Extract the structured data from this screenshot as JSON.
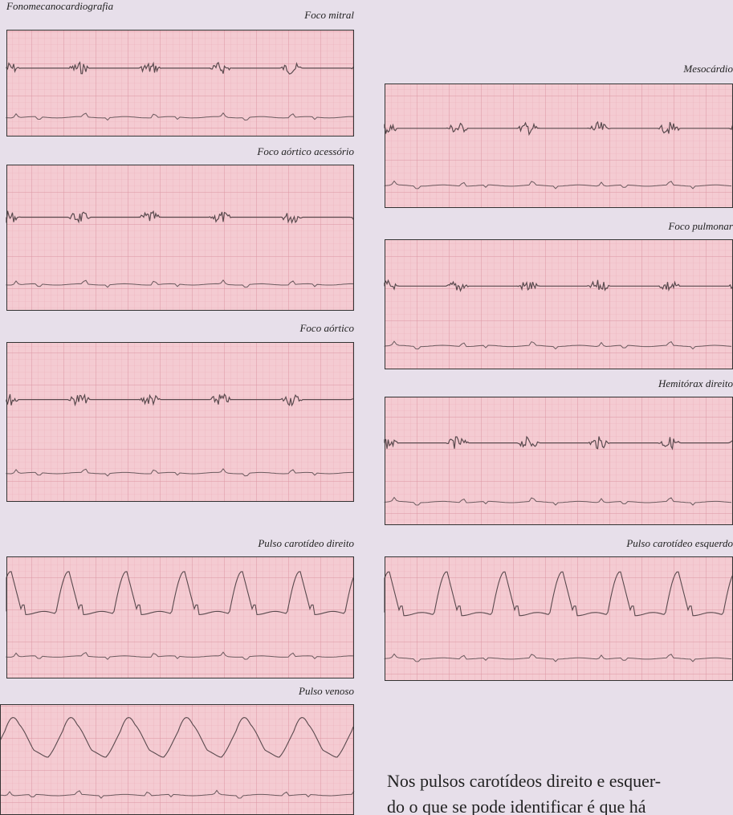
{
  "title": "Fonomecanocardiografia",
  "panels": [
    {
      "label": "Foco mitral"
    },
    {
      "label": "Foco aórtico acessório"
    },
    {
      "label": "Foco aórtico"
    },
    {
      "label": "Pulso carotídeo direito"
    },
    {
      "label": "Pulso venoso"
    },
    {
      "label": "Mesocárdio"
    },
    {
      "label": "Foco pulmonar"
    },
    {
      "label": "Hemitórax direito"
    },
    {
      "label": "Pulso carotídeo esquerdo"
    }
  ],
  "paragraph": [
    "Nos pulsos carotídeos direito e esquer-",
    "do o que se pode identificar é que há"
  ]
}
